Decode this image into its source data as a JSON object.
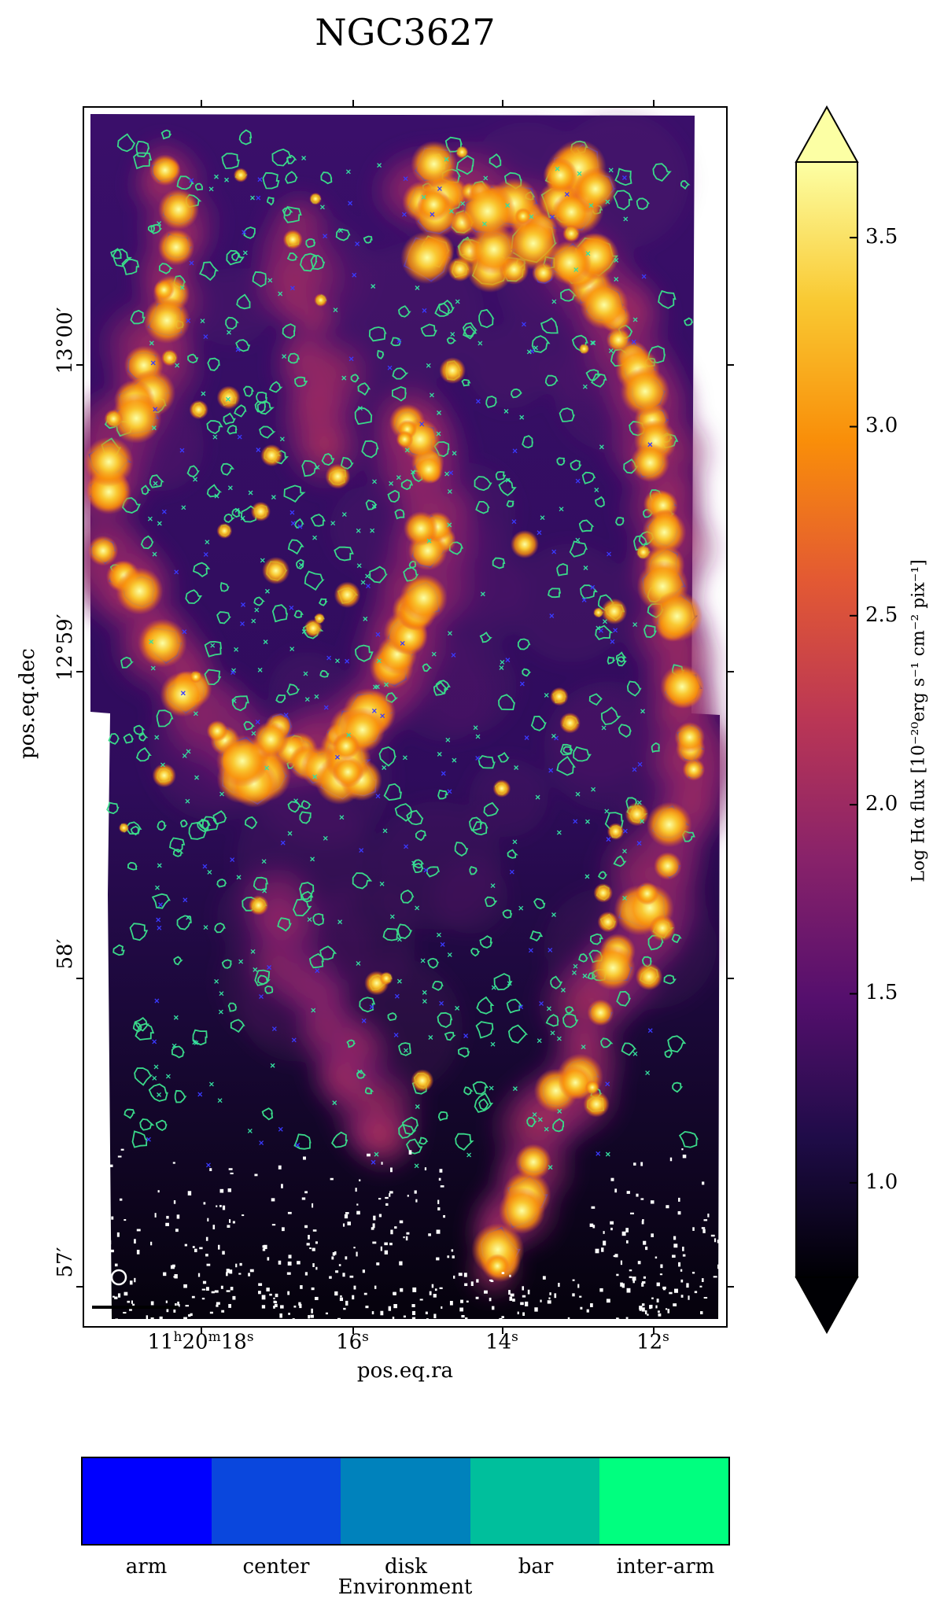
{
  "title": "NGC3627",
  "axes": {
    "xlabel": "pos.eq.ra",
    "ylabel": "pos.eq.dec",
    "x_ticks": [
      {
        "label_html": "11<sup>h</sup>20<sup>m</sup>18<sup>s</sup>"
      },
      {
        "label_html": "16<sup>s</sup>"
      },
      {
        "label_html": "14<sup>s</sup>"
      },
      {
        "label_html": "12<sup>s</sup>"
      }
    ],
    "y_ticks": [
      {
        "label": "13°00′"
      },
      {
        "label": "12°59′"
      },
      {
        "label": "58′"
      },
      {
        "label": "57′"
      }
    ]
  },
  "colorbar": {
    "label": "Log Hα flux [10⁻²⁰erg s⁻¹ cm⁻² pix⁻¹]",
    "ticks": [
      "1.0",
      "1.5",
      "2.0",
      "2.5",
      "3.0",
      "3.5"
    ],
    "tick_values": [
      1.0,
      1.5,
      2.0,
      2.5,
      3.0,
      3.5
    ],
    "range": [
      0.75,
      3.7
    ],
    "colormap": [
      "#000004",
      "#1f0c48",
      "#550f6d",
      "#88226a",
      "#ba3655",
      "#e35933",
      "#f98e09",
      "#f9c932",
      "#fcffa4"
    ]
  },
  "environment": {
    "title": "Environment",
    "categories": [
      {
        "label": "arm",
        "color": "#0000ff"
      },
      {
        "label": "center",
        "color": "#0a47dd"
      },
      {
        "label": "disk",
        "color": "#0082bc"
      },
      {
        "label": "bar",
        "color": "#00bf9c"
      },
      {
        "label": "inter-arm",
        "color": "#00ff7f"
      }
    ]
  },
  "contour_colors": {
    "arm": "#2020e0",
    "inter-arm": "#3ad98a"
  }
}
